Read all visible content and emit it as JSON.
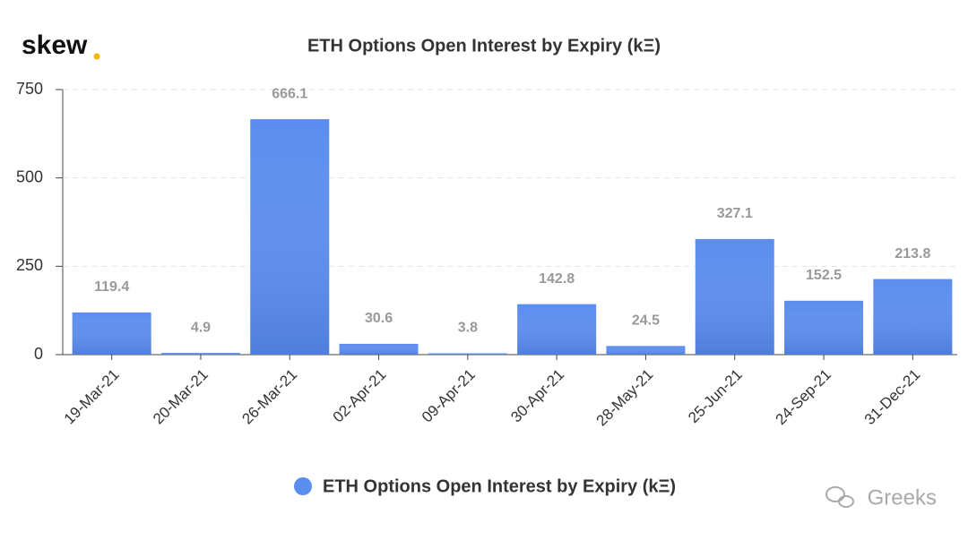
{
  "logo": "skew",
  "watermark": "Greeks",
  "chart_data": {
    "type": "bar",
    "title": "ETH Options Open Interest by Expiry (kΞ)",
    "categories": [
      "19-Mar-21",
      "20-Mar-21",
      "26-Mar-21",
      "02-Apr-21",
      "09-Apr-21",
      "30-Apr-21",
      "28-May-21",
      "25-Jun-21",
      "24-Sep-21",
      "31-Dec-21"
    ],
    "series": [
      {
        "name": "ETH Options Open Interest by Expiry (kΞ)",
        "color": "#5b8def",
        "values": [
          119.4,
          4.9,
          666.1,
          30.6,
          3.8,
          142.8,
          24.5,
          327.1,
          152.5,
          213.8
        ]
      }
    ],
    "ylim": [
      0,
      750
    ],
    "yticks": [
      0,
      250,
      500,
      750
    ],
    "grid": true
  }
}
